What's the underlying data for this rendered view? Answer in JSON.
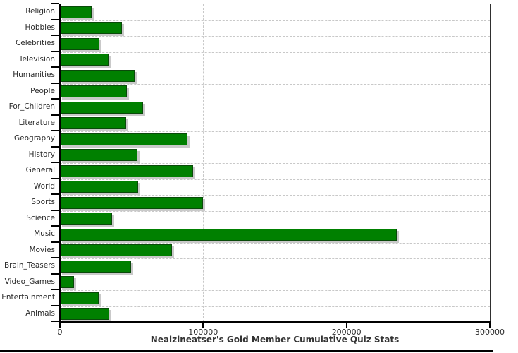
{
  "chart_data": {
    "type": "bar",
    "orientation": "horizontal",
    "title": "Nealzineatser's Gold Member Cumulative Quiz Stats",
    "xlabel": "",
    "ylabel": "",
    "categories": [
      "Religion",
      "Hobbies",
      "Celebrities",
      "Television",
      "Humanities",
      "People",
      "For_Children",
      "Literature",
      "Geography",
      "History",
      "General",
      "World",
      "Sports",
      "Science",
      "Music",
      "Movies",
      "Brain_Teasers",
      "Video_Games",
      "Entertainment",
      "Animals"
    ],
    "values": [
      22000,
      43500,
      27500,
      34000,
      52000,
      46500,
      58000,
      46000,
      89000,
      54000,
      93000,
      54500,
      100000,
      36500,
      235000,
      78000,
      49500,
      10000,
      27000,
      34500
    ],
    "xlim": [
      0,
      300000
    ],
    "x_ticks": [
      0,
      100000,
      200000,
      300000
    ],
    "x_tick_labels": [
      "0",
      "100000",
      "200000",
      "300000"
    ],
    "grid": "dashed, vertical lines at 100000 and 200000, horizontal lines between category rows",
    "legend": "none"
  },
  "colors": {
    "bar_fill": "#008000",
    "bar_border": "#0a4a0a",
    "bar_shadow": "#c9c9c9",
    "gridline": "#c8c8c8",
    "axis": "#000000",
    "plot_border": "#2f2f2f",
    "text": "#2b2b2b",
    "background": "#ffffff"
  }
}
